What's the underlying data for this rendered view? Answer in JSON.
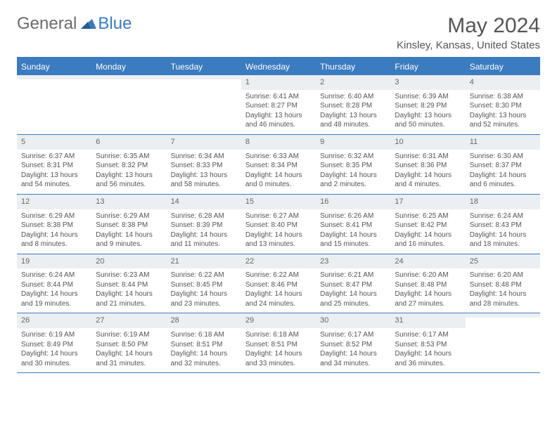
{
  "brand": {
    "general": "General",
    "blue": "Blue"
  },
  "header": {
    "month_title": "May 2024",
    "location": "Kinsley, Kansas, United States"
  },
  "colors": {
    "accent": "#3b7bbf",
    "header_bg": "#3b7bbf",
    "day_number_bg": "#eceff1",
    "text": "#555555"
  },
  "day_labels": [
    "Sunday",
    "Monday",
    "Tuesday",
    "Wednesday",
    "Thursday",
    "Friday",
    "Saturday"
  ],
  "weeks": [
    [
      null,
      null,
      null,
      {
        "n": "1",
        "sr": "Sunrise: 6:41 AM",
        "ss": "Sunset: 8:27 PM",
        "dl": "Daylight: 13 hours and 46 minutes."
      },
      {
        "n": "2",
        "sr": "Sunrise: 6:40 AM",
        "ss": "Sunset: 8:28 PM",
        "dl": "Daylight: 13 hours and 48 minutes."
      },
      {
        "n": "3",
        "sr": "Sunrise: 6:39 AM",
        "ss": "Sunset: 8:29 PM",
        "dl": "Daylight: 13 hours and 50 minutes."
      },
      {
        "n": "4",
        "sr": "Sunrise: 6:38 AM",
        "ss": "Sunset: 8:30 PM",
        "dl": "Daylight: 13 hours and 52 minutes."
      }
    ],
    [
      {
        "n": "5",
        "sr": "Sunrise: 6:37 AM",
        "ss": "Sunset: 8:31 PM",
        "dl": "Daylight: 13 hours and 54 minutes."
      },
      {
        "n": "6",
        "sr": "Sunrise: 6:35 AM",
        "ss": "Sunset: 8:32 PM",
        "dl": "Daylight: 13 hours and 56 minutes."
      },
      {
        "n": "7",
        "sr": "Sunrise: 6:34 AM",
        "ss": "Sunset: 8:33 PM",
        "dl": "Daylight: 13 hours and 58 minutes."
      },
      {
        "n": "8",
        "sr": "Sunrise: 6:33 AM",
        "ss": "Sunset: 8:34 PM",
        "dl": "Daylight: 14 hours and 0 minutes."
      },
      {
        "n": "9",
        "sr": "Sunrise: 6:32 AM",
        "ss": "Sunset: 8:35 PM",
        "dl": "Daylight: 14 hours and 2 minutes."
      },
      {
        "n": "10",
        "sr": "Sunrise: 6:31 AM",
        "ss": "Sunset: 8:36 PM",
        "dl": "Daylight: 14 hours and 4 minutes."
      },
      {
        "n": "11",
        "sr": "Sunrise: 6:30 AM",
        "ss": "Sunset: 8:37 PM",
        "dl": "Daylight: 14 hours and 6 minutes."
      }
    ],
    [
      {
        "n": "12",
        "sr": "Sunrise: 6:29 AM",
        "ss": "Sunset: 8:38 PM",
        "dl": "Daylight: 14 hours and 8 minutes."
      },
      {
        "n": "13",
        "sr": "Sunrise: 6:29 AM",
        "ss": "Sunset: 8:38 PM",
        "dl": "Daylight: 14 hours and 9 minutes."
      },
      {
        "n": "14",
        "sr": "Sunrise: 6:28 AM",
        "ss": "Sunset: 8:39 PM",
        "dl": "Daylight: 14 hours and 11 minutes."
      },
      {
        "n": "15",
        "sr": "Sunrise: 6:27 AM",
        "ss": "Sunset: 8:40 PM",
        "dl": "Daylight: 14 hours and 13 minutes."
      },
      {
        "n": "16",
        "sr": "Sunrise: 6:26 AM",
        "ss": "Sunset: 8:41 PM",
        "dl": "Daylight: 14 hours and 15 minutes."
      },
      {
        "n": "17",
        "sr": "Sunrise: 6:25 AM",
        "ss": "Sunset: 8:42 PM",
        "dl": "Daylight: 14 hours and 16 minutes."
      },
      {
        "n": "18",
        "sr": "Sunrise: 6:24 AM",
        "ss": "Sunset: 8:43 PM",
        "dl": "Daylight: 14 hours and 18 minutes."
      }
    ],
    [
      {
        "n": "19",
        "sr": "Sunrise: 6:24 AM",
        "ss": "Sunset: 8:44 PM",
        "dl": "Daylight: 14 hours and 19 minutes."
      },
      {
        "n": "20",
        "sr": "Sunrise: 6:23 AM",
        "ss": "Sunset: 8:44 PM",
        "dl": "Daylight: 14 hours and 21 minutes."
      },
      {
        "n": "21",
        "sr": "Sunrise: 6:22 AM",
        "ss": "Sunset: 8:45 PM",
        "dl": "Daylight: 14 hours and 23 minutes."
      },
      {
        "n": "22",
        "sr": "Sunrise: 6:22 AM",
        "ss": "Sunset: 8:46 PM",
        "dl": "Daylight: 14 hours and 24 minutes."
      },
      {
        "n": "23",
        "sr": "Sunrise: 6:21 AM",
        "ss": "Sunset: 8:47 PM",
        "dl": "Daylight: 14 hours and 25 minutes."
      },
      {
        "n": "24",
        "sr": "Sunrise: 6:20 AM",
        "ss": "Sunset: 8:48 PM",
        "dl": "Daylight: 14 hours and 27 minutes."
      },
      {
        "n": "25",
        "sr": "Sunrise: 6:20 AM",
        "ss": "Sunset: 8:48 PM",
        "dl": "Daylight: 14 hours and 28 minutes."
      }
    ],
    [
      {
        "n": "26",
        "sr": "Sunrise: 6:19 AM",
        "ss": "Sunset: 8:49 PM",
        "dl": "Daylight: 14 hours and 30 minutes."
      },
      {
        "n": "27",
        "sr": "Sunrise: 6:19 AM",
        "ss": "Sunset: 8:50 PM",
        "dl": "Daylight: 14 hours and 31 minutes."
      },
      {
        "n": "28",
        "sr": "Sunrise: 6:18 AM",
        "ss": "Sunset: 8:51 PM",
        "dl": "Daylight: 14 hours and 32 minutes."
      },
      {
        "n": "29",
        "sr": "Sunrise: 6:18 AM",
        "ss": "Sunset: 8:51 PM",
        "dl": "Daylight: 14 hours and 33 minutes."
      },
      {
        "n": "30",
        "sr": "Sunrise: 6:17 AM",
        "ss": "Sunset: 8:52 PM",
        "dl": "Daylight: 14 hours and 34 minutes."
      },
      {
        "n": "31",
        "sr": "Sunrise: 6:17 AM",
        "ss": "Sunset: 8:53 PM",
        "dl": "Daylight: 14 hours and 36 minutes."
      },
      null
    ]
  ]
}
